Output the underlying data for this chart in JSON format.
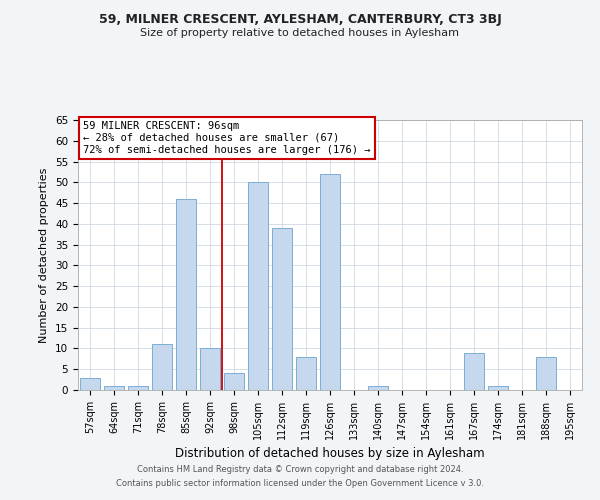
{
  "title": "59, MILNER CRESCENT, AYLESHAM, CANTERBURY, CT3 3BJ",
  "subtitle": "Size of property relative to detached houses in Aylesham",
  "xlabel": "Distribution of detached houses by size in Aylesham",
  "ylabel": "Number of detached properties",
  "footer_line1": "Contains HM Land Registry data © Crown copyright and database right 2024.",
  "footer_line2": "Contains public sector information licensed under the Open Government Licence v 3.0.",
  "annotation_title": "59 MILNER CRESCENT: 96sqm",
  "annotation_line2": "← 28% of detached houses are smaller (67)",
  "annotation_line3": "72% of semi-detached houses are larger (176) →",
  "bar_color": "#c5d8ed",
  "bar_edge_color": "#7bafd4",
  "annotation_line_color": "#cc0000",
  "categories": [
    "57sqm",
    "64sqm",
    "71sqm",
    "78sqm",
    "85sqm",
    "92sqm",
    "98sqm",
    "105sqm",
    "112sqm",
    "119sqm",
    "126sqm",
    "133sqm",
    "140sqm",
    "147sqm",
    "154sqm",
    "161sqm",
    "167sqm",
    "174sqm",
    "181sqm",
    "188sqm",
    "195sqm"
  ],
  "values": [
    3,
    1,
    1,
    11,
    46,
    10,
    4,
    50,
    39,
    8,
    52,
    0,
    1,
    0,
    0,
    0,
    9,
    1,
    0,
    8,
    0
  ],
  "ylim": [
    0,
    65
  ],
  "yticks": [
    0,
    5,
    10,
    15,
    20,
    25,
    30,
    35,
    40,
    45,
    50,
    55,
    60,
    65
  ],
  "property_bin_index": 5,
  "background_color": "#f2f5f8",
  "plot_bg_color": "#ffffff",
  "grid_color": "#d0d8e0"
}
